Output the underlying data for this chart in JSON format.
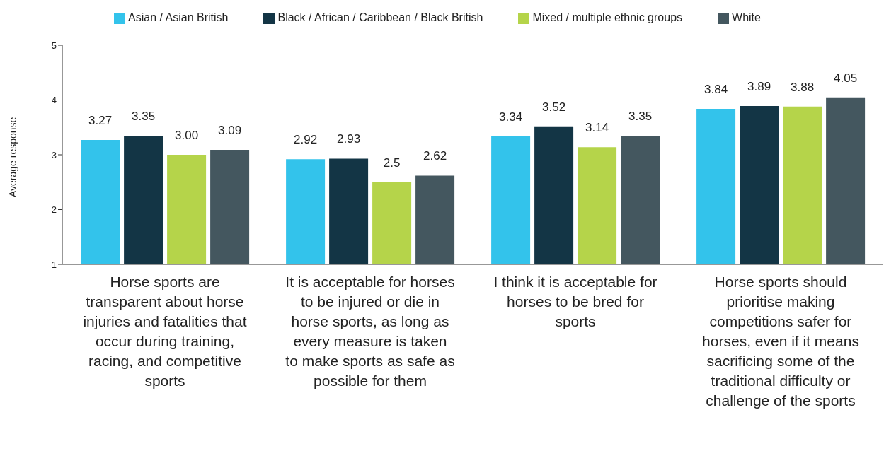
{
  "chart_data": {
    "type": "bar",
    "ylabel": "Average response",
    "categories": [
      "Horse sports are transparent about horse injuries and fatalities that occur during training, racing, and competitive sports",
      "It is acceptable for horses to be injured or die in horse sports, as long as every measure is taken to make sports as safe as possible for them",
      "I think it is acceptable for horses to be bred for sports",
      "Horse sports should prioritise making competitions safer for horses, even if it means sacrificing some of the traditional difficulty or challenge of the sports"
    ],
    "series": [
      {
        "name": "Asian / Asian British",
        "color": "#33c3eb",
        "values": [
          3.27,
          2.92,
          3.34,
          3.84
        ],
        "value_labels": [
          "3.27",
          "2.92",
          "3.34",
          "3.84"
        ]
      },
      {
        "name": "Black / African / Caribbean / Black British",
        "color": "#133545",
        "values": [
          3.35,
          2.93,
          3.52,
          3.89
        ],
        "value_labels": [
          "3.35",
          "2.93",
          "3.52",
          "3.89"
        ]
      },
      {
        "name": "Mixed / multiple ethnic groups",
        "color": "#b5d44a",
        "values": [
          3.0,
          2.5,
          3.14,
          3.88
        ],
        "value_labels": [
          "3.00",
          "2.5",
          "3.14",
          "3.88"
        ]
      },
      {
        "name": "White",
        "color": "#44575f",
        "values": [
          3.09,
          2.62,
          3.35,
          4.05
        ],
        "value_labels": [
          "3.09",
          "2.62",
          "3.35",
          "4.05"
        ]
      }
    ],
    "ylim": [
      1,
      5
    ],
    "yticks": [
      1,
      2,
      3,
      4,
      5
    ],
    "grid": false,
    "legend": "top"
  }
}
